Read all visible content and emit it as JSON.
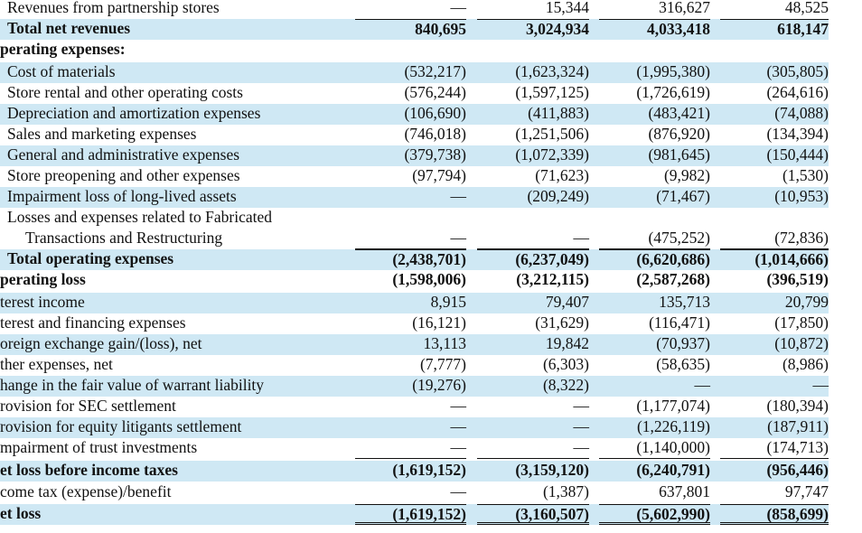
{
  "rows": [
    {
      "label": "Revenues from partnership stores",
      "values": [
        "—",
        "15,344",
        "316,627",
        "48,525"
      ]
    },
    {
      "label": "Total net revenues",
      "values": [
        "840,695",
        "3,024,934",
        "4,033,418",
        "618,147"
      ]
    },
    {
      "label": "perating expenses:",
      "values": [
        "",
        "",
        "",
        ""
      ]
    },
    {
      "label": "Cost of materials",
      "values": [
        "(532,217)",
        "(1,623,324)",
        "(1,995,380)",
        "(305,805)"
      ]
    },
    {
      "label": "Store rental and other operating costs",
      "values": [
        "(576,244)",
        "(1,597,125)",
        "(1,726,619)",
        "(264,616)"
      ]
    },
    {
      "label": "Depreciation and amortization expenses",
      "values": [
        "(106,690)",
        "(411,883)",
        "(483,421)",
        "(74,088)"
      ]
    },
    {
      "label": "Sales and marketing expenses",
      "values": [
        "(746,018)",
        "(1,251,506)",
        "(876,920)",
        "(134,394)"
      ]
    },
    {
      "label": "General and administrative expenses",
      "values": [
        "(379,738)",
        "(1,072,339)",
        "(981,645)",
        "(150,444)"
      ]
    },
    {
      "label": "Store preopening and other expenses",
      "values": [
        "(97,794)",
        "(71,623)",
        "(9,982)",
        "(1,530)"
      ]
    },
    {
      "label": "Impairment loss of long-lived assets",
      "values": [
        "—",
        "(209,249)",
        "(71,467)",
        "(10,953)"
      ]
    },
    {
      "label": "Losses and expenses related to Fabricated",
      "values": [
        "",
        "",
        "",
        ""
      ]
    },
    {
      "label": "Transactions and Restructuring",
      "values": [
        "—",
        "—",
        "(475,252)",
        "(72,836)"
      ]
    },
    {
      "label": "Total operating expenses",
      "values": [
        "(2,438,701)",
        "(6,237,049)",
        "(6,620,686)",
        "(1,014,666)"
      ]
    },
    {
      "label": "perating loss",
      "values": [
        "(1,598,006)",
        "(3,212,115)",
        "(2,587,268)",
        "(396,519)"
      ]
    },
    {
      "label": "terest income",
      "values": [
        "8,915",
        "79,407",
        "135,713",
        "20,799"
      ]
    },
    {
      "label": "terest and financing expenses",
      "values": [
        "(16,121)",
        "(31,629)",
        "(116,471)",
        "(17,850)"
      ]
    },
    {
      "label": "oreign exchange gain/(loss), net",
      "values": [
        "13,113",
        "19,842",
        "(70,937)",
        "(10,872)"
      ]
    },
    {
      "label": "ther expenses, net",
      "values": [
        "(7,777)",
        "(6,303)",
        "(58,635)",
        "(8,986)"
      ]
    },
    {
      "label": "hange in the fair value of warrant liability",
      "values": [
        "(19,276)",
        "(8,322)",
        "—",
        "—"
      ]
    },
    {
      "label": "rovision for SEC settlement",
      "values": [
        "—",
        "—",
        "(1,177,074)",
        "(180,394)"
      ]
    },
    {
      "label": "rovision for equity litigants settlement",
      "values": [
        "—",
        "—",
        "(1,226,119)",
        "(187,911)"
      ]
    },
    {
      "label": "mpairment of trust investments",
      "values": [
        "—",
        "—",
        "(1,140,000)",
        "(174,713)"
      ]
    },
    {
      "label": "et loss before income taxes",
      "values": [
        "(1,619,152)",
        "(3,159,120)",
        "(6,240,791)",
        "(956,446)"
      ]
    },
    {
      "label": "come tax (expense)/benefit",
      "values": [
        "—",
        "(1,387)",
        "637,801",
        "97,747"
      ]
    },
    {
      "label": "et loss",
      "values": [
        "(1,619,152)",
        "(3,160,507)",
        "(5,602,990)",
        "(858,699)"
      ]
    }
  ]
}
